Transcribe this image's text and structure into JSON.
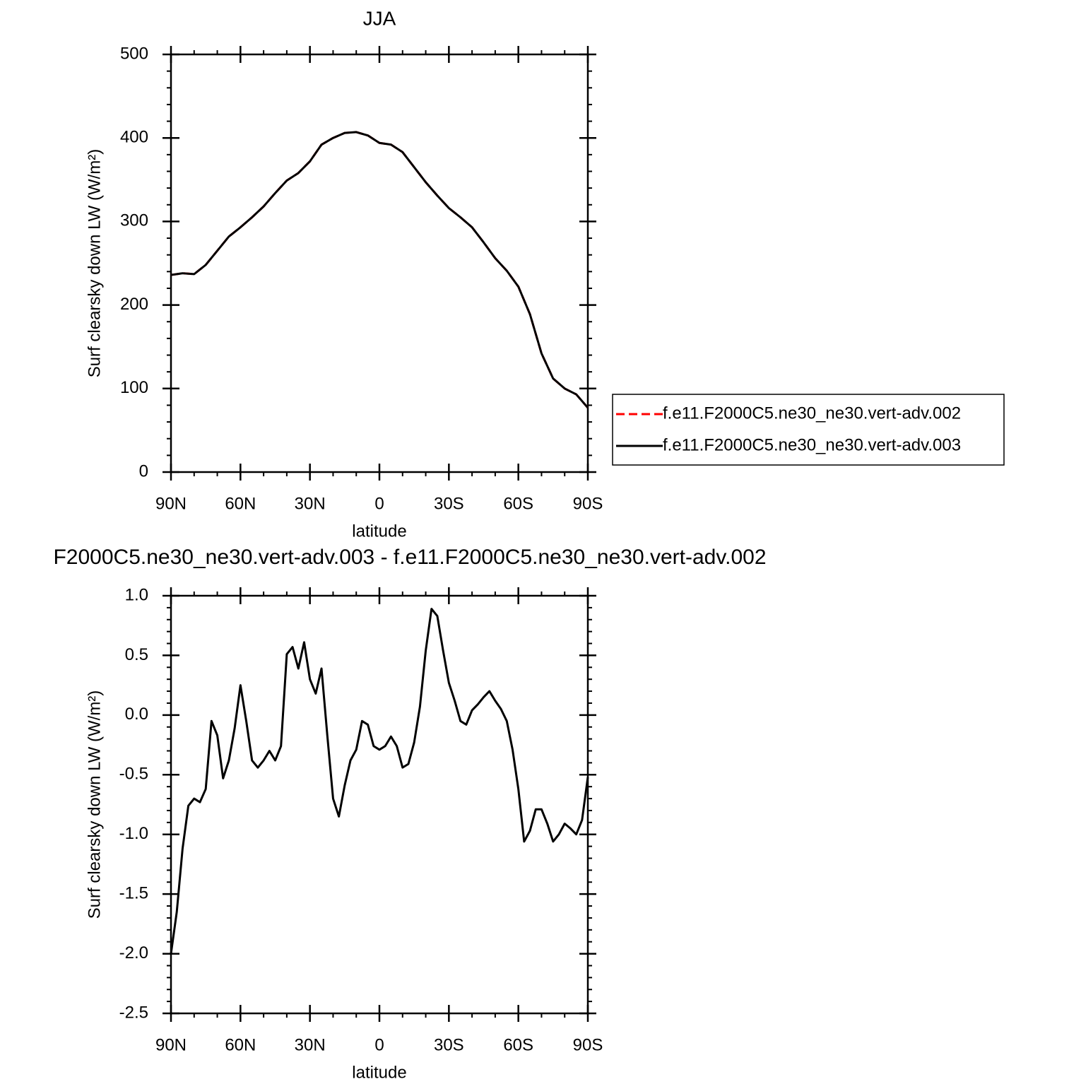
{
  "chart_data": [
    {
      "type": "line",
      "title": "JJA",
      "xlabel": "latitude",
      "ylabel": "Surf clearsky down LW (W/m²)",
      "x": [
        90,
        85,
        80,
        75,
        70,
        65,
        60,
        55,
        50,
        45,
        40,
        35,
        30,
        25,
        20,
        15,
        10,
        5,
        0,
        -5,
        -10,
        -15,
        -20,
        -25,
        -30,
        -35,
        -40,
        -45,
        -50,
        -55,
        -60,
        -65,
        -70,
        -75,
        -80,
        -85,
        -90
      ],
      "series": [
        {
          "name": "f.e11.F2000C5.ne30_ne30.vert-adv.002",
          "color": "#ff0000",
          "style": "dashed",
          "values": [
            236,
            238,
            237,
            248,
            265,
            282,
            293,
            305,
            318,
            334,
            349,
            358,
            372,
            392,
            400,
            406,
            407,
            403,
            394,
            392,
            383,
            365,
            347,
            331,
            316,
            305,
            293,
            275,
            256,
            241,
            222,
            189,
            142,
            112,
            100,
            93,
            77
          ]
        },
        {
          "name": "f.e11.F2000C5.ne30_ne30.vert-adv.003",
          "color": "#000000",
          "style": "solid",
          "values": [
            236,
            238,
            237,
            248,
            265,
            282,
            293,
            305,
            318,
            334,
            349,
            358,
            372,
            392,
            400,
            406,
            407,
            403,
            394,
            392,
            383,
            365,
            347,
            331,
            316,
            305,
            293,
            275,
            256,
            241,
            222,
            189,
            142,
            112,
            100,
            93,
            77
          ]
        }
      ],
      "xlim": [
        90,
        -90
      ],
      "xticks": [
        {
          "value": 90,
          "label": "90N"
        },
        {
          "value": 60,
          "label": "60N"
        },
        {
          "value": 30,
          "label": "30N"
        },
        0,
        {
          "value": -30,
          "label": "30S"
        },
        {
          "value": -60,
          "label": "60S"
        },
        {
          "value": -90,
          "label": "90S"
        }
      ],
      "ylim": [
        0,
        500
      ],
      "yticks": [
        0,
        100,
        200,
        300,
        400,
        500
      ],
      "legend": "right"
    },
    {
      "type": "line",
      "title": "F2000C5.ne30_ne30.vert-adv.003 - f.e11.F2000C5.ne30_ne30.vert-adv.002",
      "xlabel": "latitude",
      "ylabel": "Surf clearsky down LW (W/m²)",
      "x": [
        90,
        87.5,
        85,
        82.5,
        80,
        77.5,
        75,
        72.5,
        70,
        67.5,
        65,
        62.5,
        60,
        57.5,
        55,
        52.5,
        50,
        47.5,
        45,
        42.5,
        40,
        37.5,
        35,
        32.5,
        30,
        27.5,
        25,
        22.5,
        20,
        17.5,
        15,
        12.5,
        10,
        7.5,
        5,
        2.5,
        0,
        -2.5,
        -5,
        -7.5,
        -10,
        -12.5,
        -15,
        -17.5,
        -20,
        -22.5,
        -25,
        -27.5,
        -30,
        -32.5,
        -35,
        -37.5,
        -40,
        -42.5,
        -45,
        -47.5,
        -50,
        -52.5,
        -55,
        -57.5,
        -60,
        -62.5,
        -65,
        -67.5,
        -70,
        -72.5,
        -75,
        -77.5,
        -80,
        -82.5,
        -85,
        -87.5,
        -90
      ],
      "series": [
        {
          "color": "#000000",
          "style": "solid",
          "values": [
            -2.0,
            -1.65,
            -1.12,
            -0.76,
            -0.7,
            -0.73,
            -0.62,
            -0.05,
            -0.17,
            -0.53,
            -0.38,
            -0.11,
            0.25,
            -0.05,
            -0.38,
            -0.44,
            -0.38,
            -0.3,
            -0.38,
            -0.26,
            0.51,
            0.57,
            0.39,
            0.61,
            0.3,
            0.18,
            0.39,
            -0.17,
            -0.7,
            -0.85,
            -0.59,
            -0.38,
            -0.29,
            -0.05,
            -0.08,
            -0.26,
            -0.29,
            -0.26,
            -0.18,
            -0.26,
            -0.44,
            -0.41,
            -0.23,
            0.07,
            0.54,
            0.89,
            0.83,
            0.54,
            0.27,
            0.12,
            -0.05,
            -0.08,
            0.04,
            0.09,
            0.15,
            0.2,
            0.12,
            0.05,
            -0.05,
            -0.29,
            -0.62,
            -1.06,
            -0.97,
            -0.79,
            -0.79,
            -0.91,
            -1.06,
            -1.0,
            -0.91,
            -0.95,
            -1.0,
            -0.88,
            -0.52
          ]
        }
      ],
      "xlim": [
        90,
        -90
      ],
      "xticks": [
        {
          "value": 90,
          "label": "90N"
        },
        {
          "value": 60,
          "label": "60N"
        },
        {
          "value": 30,
          "label": "30N"
        },
        0,
        {
          "value": -30,
          "label": "30S"
        },
        {
          "value": -60,
          "label": "60S"
        },
        {
          "value": -90,
          "label": "90S"
        }
      ],
      "ylim": [
        -2.5,
        1.0
      ],
      "yticks": [
        {
          "value": -2.5,
          "label": "-2.5"
        },
        {
          "value": -2,
          "label": "-2.0"
        },
        {
          "value": -1.5,
          "label": "-1.5"
        },
        {
          "value": -1,
          "label": "-1.0"
        },
        {
          "value": -0.5,
          "label": "-0.5"
        },
        {
          "value": 0,
          "label": "0.0"
        },
        {
          "value": 0.5,
          "label": "0.5"
        },
        {
          "value": 1,
          "label": "1.0"
        }
      ]
    }
  ]
}
